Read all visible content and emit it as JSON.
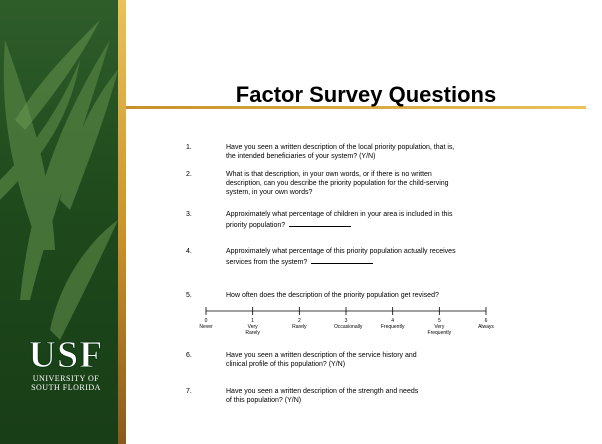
{
  "title": "Factor Survey Questions",
  "logo": {
    "mark": "USF",
    "line1": "UNIVERSITY OF",
    "line2": "SOUTH FLORIDA"
  },
  "questions": [
    {
      "number": "1.",
      "lines": [
        "Have you seen a written description of the local priority population, that is,",
        "the intended beneficiaries of your system? (Y/N)"
      ]
    },
    {
      "number": "2.",
      "lines": [
        "What is that description, in your own words, or if there is no written",
        "description, can you describe the priority population for the child-serving",
        "system, in your own words?"
      ]
    },
    {
      "number": "3.",
      "lines": [
        "Approximately what percentage of children in your area is included in this",
        "priority population?"
      ]
    },
    {
      "number": "4.",
      "lines": [
        "Approximately what percentage of this priority population actually receives",
        "services from the system?"
      ]
    },
    {
      "number": "5.",
      "lines": [
        "How often does the description of the priority population get revised?"
      ]
    },
    {
      "number": "6.",
      "lines": [
        "Have you seen a written description of the service history and",
        "clinical profile of this population? (Y/N)"
      ]
    },
    {
      "number": "7.",
      "lines": [
        "Have you seen a written description of the strength and needs",
        "of this population? (Y/N)"
      ]
    }
  ],
  "scale": [
    {
      "number": "0",
      "label": "Never"
    },
    {
      "number": "1",
      "label": "Very Rarely"
    },
    {
      "number": "2",
      "label": "Rarely"
    },
    {
      "number": "3",
      "label": "Occasionally"
    },
    {
      "number": "4",
      "label": "Frequently"
    },
    {
      "number": "5",
      "label": "Very Frequently"
    },
    {
      "number": "6",
      "label": "Always"
    }
  ]
}
